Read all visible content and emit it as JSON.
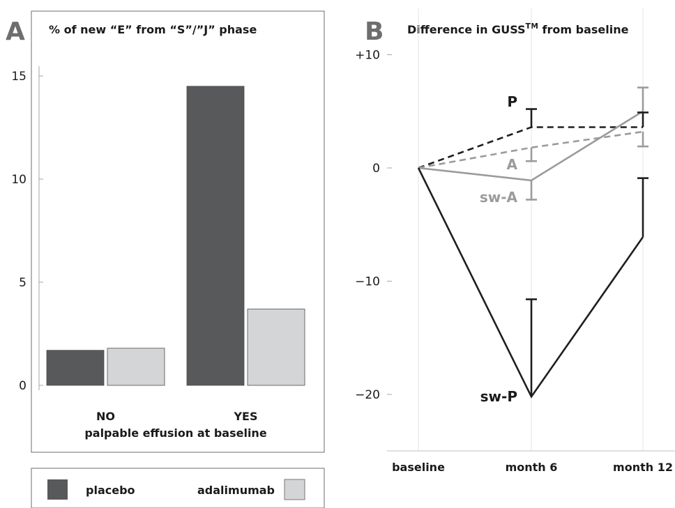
{
  "chart_data": [
    {
      "type": "bar",
      "panel_label": "A",
      "title": "% of new “E” from “S”/”J” phase",
      "xlabel": "palpable effusion at baseline",
      "ylabel": "",
      "categories": [
        "NO",
        "YES"
      ],
      "yticks": [
        "0",
        "5",
        "10",
        "15"
      ],
      "ylim": [
        -3,
        18
      ],
      "series": [
        {
          "name": "placebo",
          "values": [
            1.7,
            14.5
          ],
          "color": "#58595b"
        },
        {
          "name": "adalimumab",
          "values": [
            1.8,
            3.7
          ],
          "color": "#d4d5d6"
        }
      ],
      "legend_placement": "bottom",
      "grid": false
    },
    {
      "type": "line",
      "panel_label": "B",
      "title_main": "Difference in GUSS",
      "title_sup": "TM",
      "title_suffix": " from baseline",
      "xlabel": "",
      "ylabel": "",
      "x": [
        "baseline",
        "month 6",
        "month 12"
      ],
      "yticks": [
        "+10",
        "0",
        "−10",
        "−20"
      ],
      "ytick_values": [
        10,
        0,
        -10,
        -20
      ],
      "ylim": [
        -25,
        13
      ],
      "grid": true,
      "series": [
        {
          "name": "P",
          "values": [
            0,
            3.6,
            3.6
          ],
          "error_upper": [
            null,
            5.2,
            4.9
          ],
          "color": "#1e1e1e",
          "dash": "dashed"
        },
        {
          "name": "A",
          "values": [
            0,
            1.8,
            3.2
          ],
          "error_lower": [
            null,
            0.6,
            1.9
          ],
          "color": "#9b9b9b",
          "dash": "dashed"
        },
        {
          "name": "sw-A",
          "values": [
            0,
            -1.1,
            5.0
          ],
          "error_lower": [
            null,
            -2.8,
            null
          ],
          "error_upper": [
            null,
            null,
            7.1
          ],
          "color": "#9b9b9b",
          "dash": "solid"
        },
        {
          "name": "sw-P",
          "values": [
            0,
            -20.2,
            -6.1
          ],
          "error_upper": [
            null,
            -11.6,
            -0.9
          ],
          "color": "#1e1e1e",
          "dash": "solid"
        }
      ]
    }
  ]
}
